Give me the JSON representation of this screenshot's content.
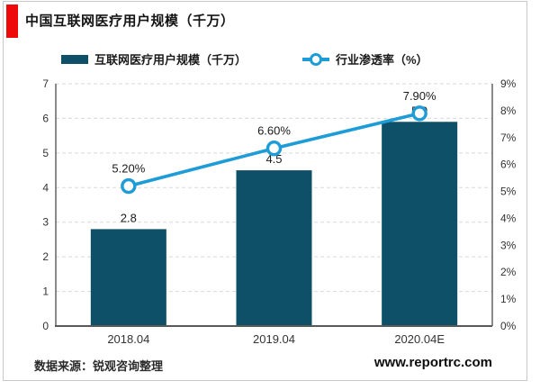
{
  "header": {
    "title": "中国互联网医疗用户规模（千万）",
    "accent_color": "#ee0a0a"
  },
  "legend": {
    "bar_label": "互联网医疗用户规模（千万）",
    "line_label": "行业渗透率（%）"
  },
  "footer": {
    "source": "数据来源：锐观咨询整理",
    "website": "www.reportrc.com"
  },
  "colors": {
    "bar": "#0d5068",
    "line": "#1e9cd7",
    "gridline": "#d9d9d9",
    "axis": "#595959",
    "text": "#1a1a1a",
    "tick_text": "#333333"
  },
  "chart_data": {
    "type": "bar",
    "subtype": "bar-with-line-overlay",
    "title": "中国互联网医疗用户规模（千万）",
    "categories": [
      "2018.04",
      "2019.04",
      "2020.04E"
    ],
    "series": [
      {
        "name": "互联网医疗用户规模（千万）",
        "type": "bar",
        "axis": "left",
        "values": [
          2.8,
          4.5,
          5.9
        ],
        "labels": [
          "2.8",
          "4.5",
          "5.9"
        ],
        "color": "#0d5068"
      },
      {
        "name": "行业渗透率（%）",
        "type": "line",
        "axis": "right",
        "values": [
          5.2,
          6.6,
          7.9
        ],
        "labels": [
          "5.20%",
          "6.60%",
          "7.90%"
        ],
        "color": "#1e9cd7"
      }
    ],
    "left_axis": {
      "min": 0,
      "max": 7,
      "ticks": [
        "0",
        "1",
        "2",
        "3",
        "4",
        "5",
        "6",
        "7"
      ]
    },
    "right_axis": {
      "min": 0,
      "max": 9,
      "ticks": [
        "0%",
        "1%",
        "2%",
        "3%",
        "4%",
        "5%",
        "6%",
        "7%",
        "8%",
        "9%"
      ]
    },
    "grid": "horizontal-dashed",
    "legend_position": "top"
  }
}
